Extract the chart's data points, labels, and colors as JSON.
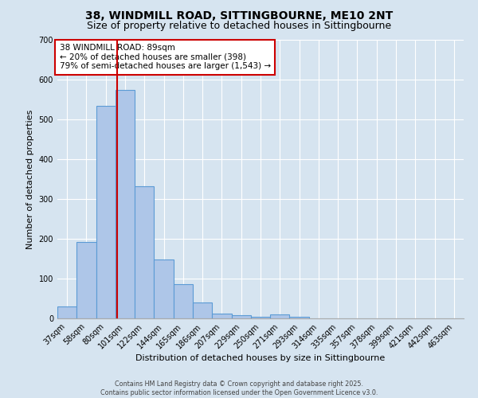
{
  "title_line1": "38, WINDMILL ROAD, SITTINGBOURNE, ME10 2NT",
  "title_line2": "Size of property relative to detached houses in Sittingbourne",
  "xlabel": "Distribution of detached houses by size in Sittingbourne",
  "ylabel": "Number of detached properties",
  "bar_color": "#aec6e8",
  "bar_edge_color": "#5b9bd5",
  "background_color": "#d6e4f0",
  "grid_color": "#ffffff",
  "bins": [
    "37sqm",
    "58sqm",
    "80sqm",
    "101sqm",
    "122sqm",
    "144sqm",
    "165sqm",
    "186sqm",
    "207sqm",
    "229sqm",
    "250sqm",
    "271sqm",
    "293sqm",
    "314sqm",
    "335sqm",
    "357sqm",
    "378sqm",
    "399sqm",
    "421sqm",
    "442sqm",
    "463sqm"
  ],
  "values": [
    30,
    193,
    535,
    575,
    333,
    148,
    87,
    40,
    13,
    8,
    5,
    10,
    5,
    0,
    0,
    0,
    0,
    0,
    0,
    0,
    0
  ],
  "ylim": [
    0,
    700
  ],
  "yticks": [
    0,
    100,
    200,
    300,
    400,
    500,
    600,
    700
  ],
  "red_line_x": 2.57,
  "annotation_text": "38 WINDMILL ROAD: 89sqm\n← 20% of detached houses are smaller (398)\n79% of semi-detached houses are larger (1,543) →",
  "annotation_box_color": "#ffffff",
  "annotation_box_edge_color": "#cc0000",
  "footer_line1": "Contains HM Land Registry data © Crown copyright and database right 2025.",
  "footer_line2": "Contains public sector information licensed under the Open Government Licence v3.0.",
  "title_fontsize": 10,
  "subtitle_fontsize": 9,
  "tick_fontsize": 7,
  "axis_label_fontsize": 8,
  "annotation_fontsize": 7.5,
  "footer_fontsize": 5.8
}
